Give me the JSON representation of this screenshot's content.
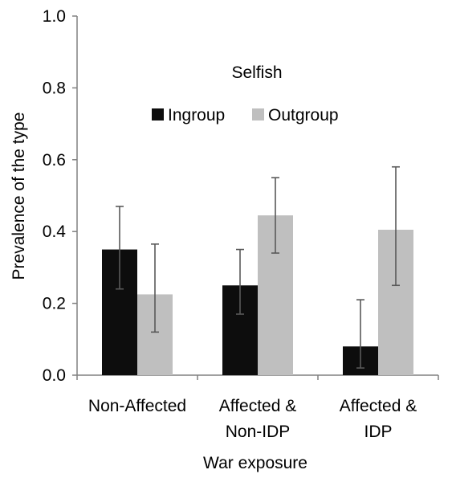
{
  "chart_data": {
    "type": "bar",
    "title": "Selfish",
    "xlabel": "War exposure",
    "ylabel": "Prevalence of the type",
    "ylim": [
      0,
      1.0
    ],
    "yticks": [
      "0.0",
      "0.2",
      "0.4",
      "0.6",
      "0.8",
      "1.0"
    ],
    "categories": [
      [
        "Non-Affected"
      ],
      [
        "Affected &",
        "Non-IDP"
      ],
      [
        "Affected &",
        "IDP"
      ]
    ],
    "series": [
      {
        "name": "Ingroup",
        "color": "#0d0d0d",
        "values": [
          0.35,
          0.25,
          0.08
        ],
        "error_low": [
          0.24,
          0.17,
          0.02
        ],
        "error_high": [
          0.47,
          0.35,
          0.21
        ]
      },
      {
        "name": "Outgroup",
        "color": "#bfbfbf",
        "values": [
          0.225,
          0.445,
          0.405
        ],
        "error_low": [
          0.12,
          0.34,
          0.25
        ],
        "error_high": [
          0.365,
          0.55,
          0.58
        ]
      }
    ],
    "legend_position": "top-center",
    "grid": false
  }
}
